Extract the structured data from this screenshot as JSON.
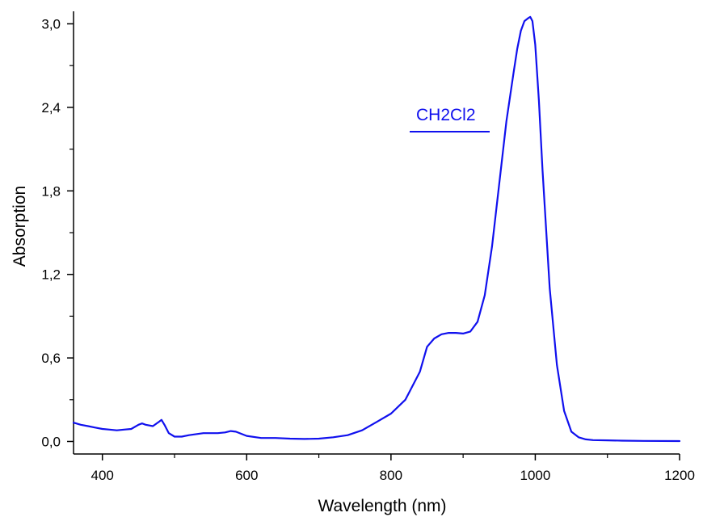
{
  "chart_data": {
    "type": "line",
    "title": "",
    "xlabel": "Wavelength (nm)",
    "ylabel": "Absorption",
    "xlim": [
      360,
      1200
    ],
    "ylim": [
      -0.09,
      3.09
    ],
    "x_ticks": [
      400,
      600,
      800,
      1000,
      1200
    ],
    "x_tick_labels": [
      "400",
      "600",
      "800",
      "1000",
      "1200"
    ],
    "y_ticks": [
      0.0,
      0.6,
      1.2,
      1.8,
      2.4,
      3.0
    ],
    "y_tick_labels": [
      "0,0",
      "0,6",
      "1,2",
      "1,8",
      "2,4",
      "3,0"
    ],
    "grid": false,
    "legend_position": "top-right",
    "series": [
      {
        "name": "CH2Cl2",
        "color": "#1010ee",
        "x": [
          360,
          370,
          380,
          390,
          400,
          410,
          420,
          430,
          440,
          450,
          455,
          460,
          470,
          478,
          482,
          486,
          492,
          500,
          510,
          520,
          540,
          560,
          570,
          578,
          585,
          600,
          620,
          640,
          660,
          680,
          700,
          720,
          740,
          760,
          780,
          800,
          820,
          840,
          850,
          860,
          870,
          880,
          890,
          900,
          910,
          920,
          930,
          940,
          950,
          960,
          970,
          975,
          980,
          985,
          990,
          993,
          996,
          1000,
          1005,
          1010,
          1020,
          1030,
          1040,
          1050,
          1060,
          1070,
          1080,
          1100,
          1120,
          1150,
          1200
        ],
        "y": [
          0.135,
          0.12,
          0.11,
          0.1,
          0.09,
          0.085,
          0.08,
          0.085,
          0.09,
          0.12,
          0.13,
          0.12,
          0.11,
          0.14,
          0.155,
          0.12,
          0.06,
          0.035,
          0.035,
          0.045,
          0.06,
          0.06,
          0.065,
          0.075,
          0.07,
          0.04,
          0.025,
          0.025,
          0.02,
          0.018,
          0.02,
          0.03,
          0.045,
          0.08,
          0.14,
          0.2,
          0.3,
          0.5,
          0.68,
          0.74,
          0.77,
          0.78,
          0.78,
          0.775,
          0.79,
          0.86,
          1.05,
          1.4,
          1.85,
          2.3,
          2.65,
          2.82,
          2.95,
          3.02,
          3.04,
          3.05,
          3.02,
          2.85,
          2.45,
          1.95,
          1.1,
          0.55,
          0.22,
          0.07,
          0.03,
          0.015,
          0.01,
          0.008,
          0.006,
          0.004,
          0.003
        ]
      }
    ]
  }
}
